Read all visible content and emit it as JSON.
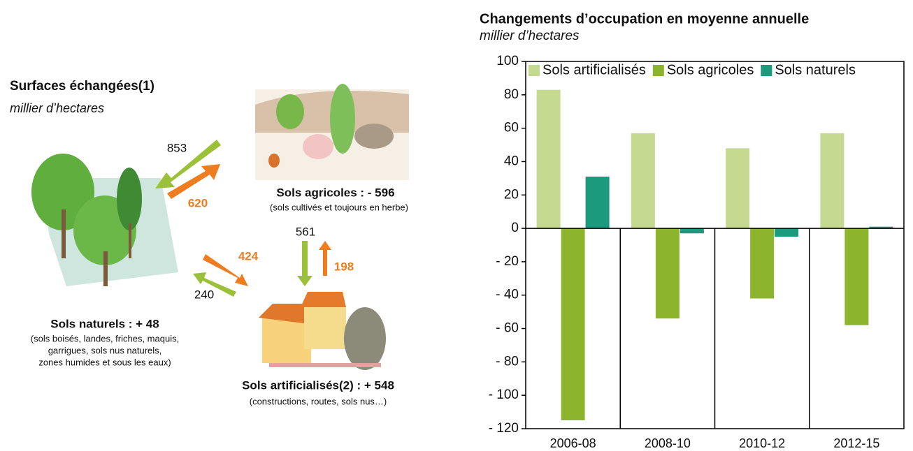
{
  "diagram": {
    "title": "Surfaces échangées(1)",
    "subtitle": "millier d’hectares",
    "flows": [
      853,
      620,
      424,
      240,
      561,
      198
    ],
    "nodes": [
      {
        "label": "Sols agricoles : - 596",
        "note": [
          "(sols cultivés et toujours en herbe)"
        ]
      },
      {
        "label": "Sols naturels : + 48",
        "note": [
          "(sols boisés, landes, friches, maquis,",
          "garrigues, sols nus naturels,",
          "zones humides et sous les eaux)"
        ]
      },
      {
        "label": "Sols artificialisés(2) : + 548",
        "note": [
          "(constructions, routes, sols nus…)"
        ]
      }
    ]
  },
  "chart_data": {
    "type": "bar",
    "title": "Changements d’occupation en moyenne annuelle",
    "subtitle": "millier d’hectares",
    "categories": [
      "2006-08",
      "2008-10",
      "2010-12",
      "2012-15"
    ],
    "series": [
      {
        "name": "Sols artificialisés",
        "color": "#c6d991",
        "values": [
          83,
          57,
          48,
          57
        ]
      },
      {
        "name": "Sols agricoles",
        "color": "#8cb42c",
        "values": [
          -115,
          -54,
          -42,
          -58
        ]
      },
      {
        "name": "Sols naturels",
        "color": "#1b9a7e",
        "values": [
          31,
          -3,
          -5,
          1
        ]
      }
    ],
    "ylim": [
      -120,
      100
    ],
    "yticks": [
      {
        "value": -120,
        "label": "- 120"
      },
      {
        "value": -100,
        "label": "- 100"
      },
      {
        "value": -80,
        "label": "- 80"
      },
      {
        "value": -60,
        "label": "- 60"
      },
      {
        "value": -40,
        "label": "- 40"
      },
      {
        "value": -20,
        "label": "- 20"
      },
      0,
      20,
      40,
      60,
      80,
      100
    ],
    "legend": "top"
  }
}
